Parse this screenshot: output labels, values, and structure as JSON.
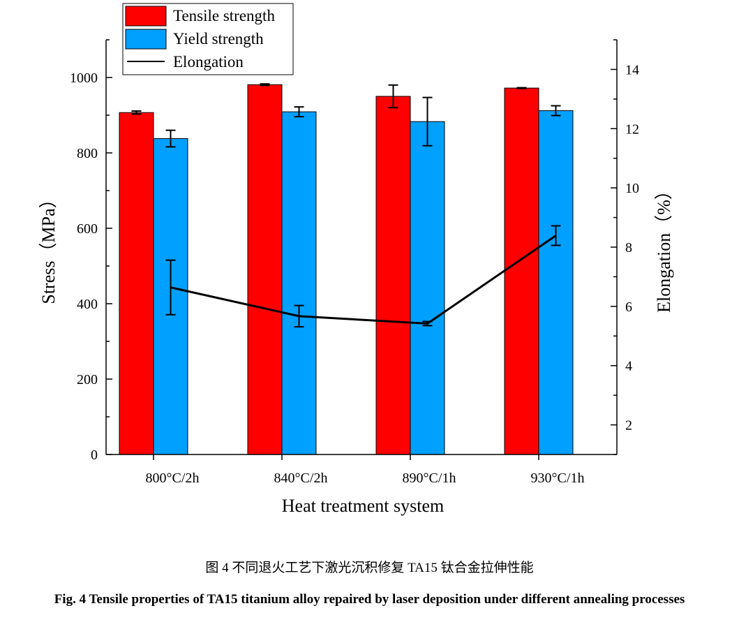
{
  "chart_data": {
    "type": "bar",
    "xlabel": "Heat treatment system",
    "ylabel": "Stress（MPa）",
    "y2label": "Elongation（%）",
    "categories": [
      "800°C/2h",
      "840°C/2h",
      "890°C/1h",
      "930°C/1h"
    ],
    "ylim": [
      0,
      1100
    ],
    "yticks": [
      0,
      200,
      400,
      600,
      800,
      1000
    ],
    "y2lim": [
      1,
      15
    ],
    "y2ticks": [
      2,
      4,
      6,
      8,
      10,
      12,
      14
    ],
    "legend_position": "top-left",
    "series": [
      {
        "name": "Tensile strength",
        "type": "bar",
        "axis": "left",
        "color": "#ff0000",
        "values": [
          907,
          981,
          950,
          972
        ],
        "errors": [
          4,
          2,
          30,
          1
        ]
      },
      {
        "name": "Yield strength",
        "type": "bar",
        "axis": "left",
        "color": "#00a0ff",
        "values": [
          838,
          909,
          883,
          912
        ],
        "errors": [
          22,
          13,
          64,
          13
        ]
      },
      {
        "name": "Elongation",
        "type": "line",
        "axis": "right",
        "color": "#000000",
        "values": [
          6.64,
          5.67,
          5.42,
          8.39
        ],
        "errors": [
          0.92,
          0.36,
          0.07,
          0.33
        ]
      }
    ]
  },
  "caption": {
    "cn": "图 4  不同退火工艺下激光沉积修复 TA15 钛合金拉伸性能",
    "en": "Fig. 4 Tensile properties of TA15 titanium alloy repaired by laser deposition under different annealing processes"
  }
}
